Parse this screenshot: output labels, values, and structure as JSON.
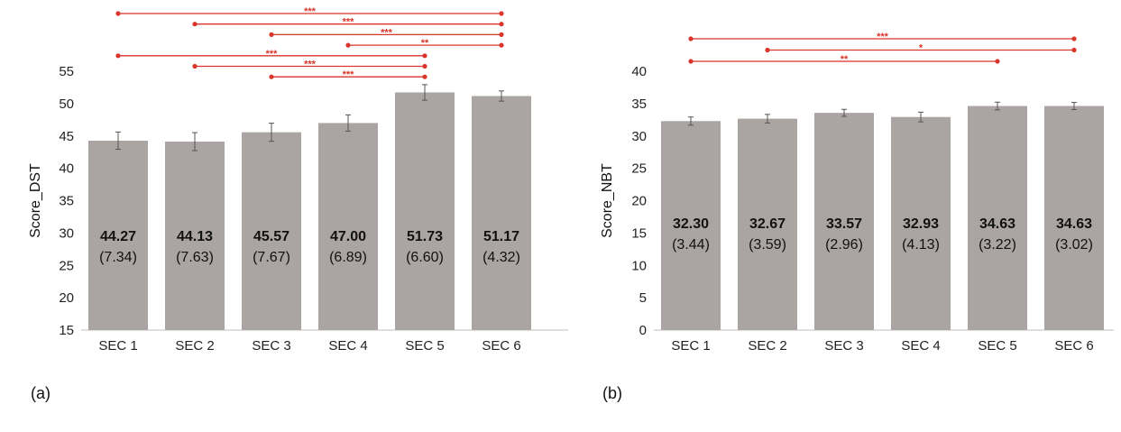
{
  "chart_data": [
    {
      "type": "bar",
      "panel_label": "(a)",
      "ylabel": "Score_DST",
      "ylim": [
        15,
        55
      ],
      "yticks": [
        15,
        20,
        25,
        30,
        35,
        40,
        45,
        50,
        55
      ],
      "categories": [
        "SEC 1",
        "SEC 2",
        "SEC 3",
        "SEC 4",
        "SEC 5",
        "SEC 6"
      ],
      "values": [
        44.27,
        44.13,
        45.57,
        47.0,
        51.73,
        51.17
      ],
      "mean_labels": [
        "44.27",
        "44.13",
        "45.57",
        "47.00",
        "51.73",
        "51.17"
      ],
      "sd_labels": [
        "(7.34)",
        "(7.63)",
        "(7.67)",
        "(6.89)",
        "(6.60)",
        "(4.32)"
      ],
      "error": [
        1.34,
        1.39,
        1.4,
        1.26,
        1.2,
        0.79
      ],
      "bar_color": "#aaa5a3",
      "sig_color": "#d9352b",
      "significance": [
        {
          "from": 0,
          "to": 5,
          "stars": "***"
        },
        {
          "from": 1,
          "to": 5,
          "stars": "***"
        },
        {
          "from": 2,
          "to": 5,
          "stars": "***"
        },
        {
          "from": 3,
          "to": 5,
          "stars": "**"
        },
        {
          "from": 0,
          "to": 4,
          "stars": "***"
        },
        {
          "from": 1,
          "to": 4,
          "stars": "***"
        },
        {
          "from": 2,
          "to": 4,
          "stars": "***"
        }
      ]
    },
    {
      "type": "bar",
      "panel_label": "(b)",
      "ylabel": "Score_NBT",
      "ylim": [
        0,
        40
      ],
      "yticks": [
        0,
        5,
        10,
        15,
        20,
        25,
        30,
        35,
        40
      ],
      "categories": [
        "SEC 1",
        "SEC 2",
        "SEC 3",
        "SEC 4",
        "SEC 5",
        "SEC 6"
      ],
      "values": [
        32.3,
        32.67,
        33.57,
        32.93,
        34.63,
        34.63
      ],
      "mean_labels": [
        "32.30",
        "32.67",
        "33.57",
        "32.93",
        "34.63",
        "34.63"
      ],
      "sd_labels": [
        "(3.44)",
        "(3.59)",
        "(2.96)",
        "(4.13)",
        "(3.22)",
        "(3.02)"
      ],
      "error": [
        0.63,
        0.66,
        0.54,
        0.75,
        0.59,
        0.55
      ],
      "bar_color": "#aaa5a3",
      "sig_color": "#d9352b",
      "significance": [
        {
          "from": 0,
          "to": 5,
          "stars": "***"
        },
        {
          "from": 1,
          "to": 5,
          "stars": "*"
        },
        {
          "from": 0,
          "to": 4,
          "stars": "**"
        }
      ]
    }
  ]
}
